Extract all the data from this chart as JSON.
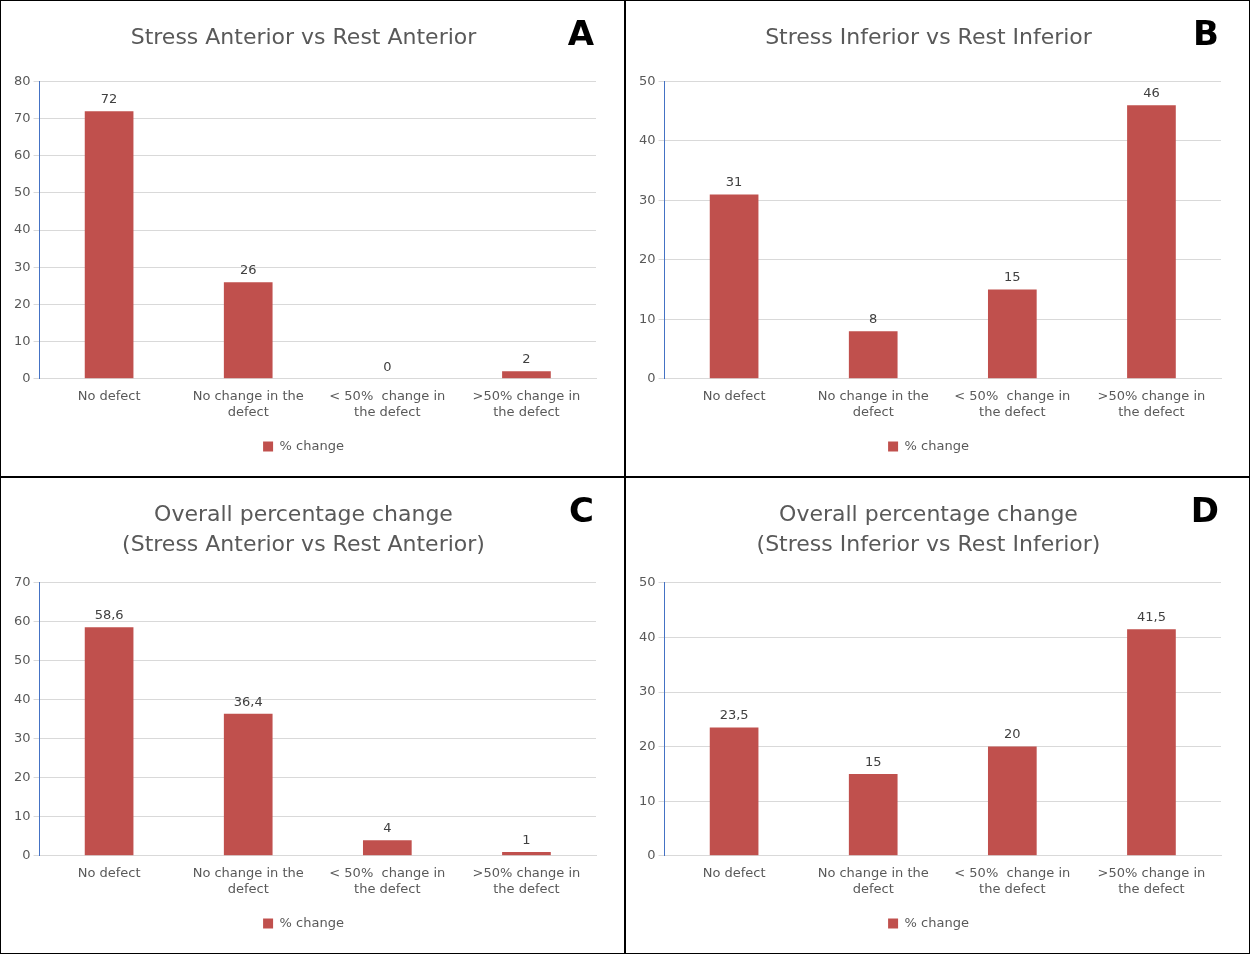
{
  "chart_data": [
    {
      "type": "bar",
      "title": "Stress Anterior vs Rest Anterior",
      "annotations": [
        "A"
      ],
      "categories": [
        "No defect",
        "No change in the defect",
        "< 50%  change in the defect",
        ">50% change in the defect"
      ],
      "series": [
        {
          "name": "% change",
          "color": "#c0504d",
          "values": [
            72,
            26,
            0,
            2
          ],
          "value_labels": [
            "72",
            "26",
            "0",
            "2"
          ]
        }
      ],
      "ylim": [
        0,
        80
      ],
      "yticks": [
        0,
        10,
        20,
        30,
        40,
        50,
        60,
        70,
        80
      ],
      "grid": "y",
      "legend": "bottom"
    },
    {
      "type": "bar",
      "title": "Stress Inferior vs Rest Inferior",
      "annotations": [
        "B"
      ],
      "categories": [
        "No defect",
        "No change in the defect",
        "< 50%  change in the defect",
        ">50% change in the defect"
      ],
      "series": [
        {
          "name": "% change",
          "color": "#c0504d",
          "values": [
            31,
            8,
            15,
            46
          ],
          "value_labels": [
            "31",
            "8",
            "15",
            "46"
          ]
        }
      ],
      "ylim": [
        0,
        50
      ],
      "yticks": [
        0,
        10,
        20,
        30,
        40,
        50
      ],
      "grid": "y",
      "legend": "bottom"
    },
    {
      "type": "bar",
      "title": "Overall percentage change",
      "subtitle": "(Stress Anterior vs Rest Anterior)",
      "annotations": [
        "C"
      ],
      "categories": [
        "No defect",
        "No change in the defect",
        "< 50%  change in the defect",
        ">50% change in the defect"
      ],
      "series": [
        {
          "name": "% change",
          "color": "#c0504d",
          "values": [
            58.6,
            36.4,
            4,
            1
          ],
          "value_labels": [
            "58,6",
            "36,4",
            "4",
            "1"
          ]
        }
      ],
      "ylim": [
        0,
        70
      ],
      "yticks": [
        0,
        10,
        20,
        30,
        40,
        50,
        60,
        70
      ],
      "grid": "y",
      "legend": "bottom"
    },
    {
      "type": "bar",
      "title": "Overall percentage change",
      "subtitle": "(Stress Inferior vs Rest Inferior)",
      "annotations": [
        "D"
      ],
      "categories": [
        "No defect",
        "No change in the defect",
        "< 50%  change in the defect",
        ">50% change in the defect"
      ],
      "series": [
        {
          "name": "% change",
          "color": "#c0504d",
          "values": [
            23.5,
            15,
            20,
            41.5
          ],
          "value_labels": [
            "23,5",
            "15",
            "20",
            "41,5"
          ]
        }
      ],
      "ylim": [
        0,
        50
      ],
      "yticks": [
        0,
        10,
        20,
        30,
        40,
        50
      ],
      "grid": "y",
      "legend": "bottom"
    }
  ]
}
